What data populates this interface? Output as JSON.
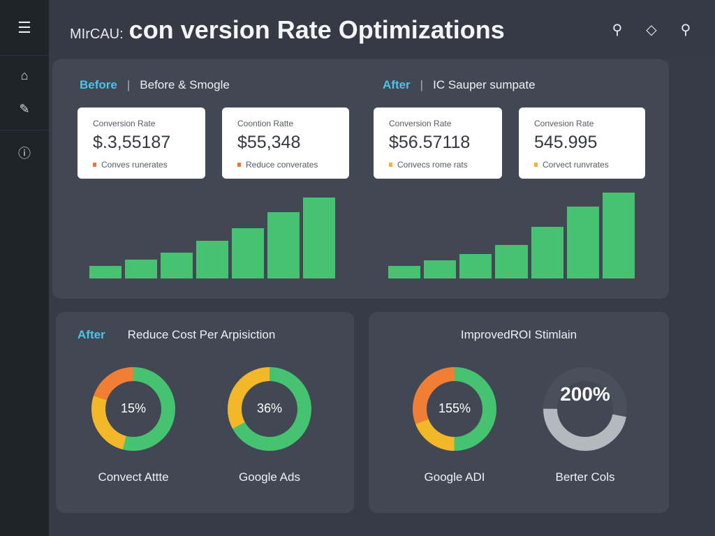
{
  "header": {
    "title_prefix": "MIrCAU:",
    "title": "con version Rate Optimizations"
  },
  "top_panel": {
    "before": {
      "tag": "Before",
      "subtitle": "Before & Smogle"
    },
    "after": {
      "tag": "After",
      "subtitle": "IC Sauper sumpate"
    },
    "cards": [
      {
        "label": "Conversion Rate",
        "value": "$.3,55187",
        "note": "Conves runerates",
        "dot": "#e8773a"
      },
      {
        "label": "Coontion Ratte",
        "value": "$55,348",
        "note": "Reduce converates",
        "dot": "#e8773a"
      },
      {
        "label": "Conversion Rate",
        "value": "$56.57118",
        "note": "Convecs rome rats",
        "dot": "#f2b829"
      },
      {
        "label": "Convesion Rate",
        "value": "545.995",
        "note": "Corvect runvrates",
        "dot": "#f2b829"
      }
    ]
  },
  "chart_data": [
    {
      "type": "bar",
      "title": "Before",
      "values": [
        18,
        27,
        37,
        54,
        72,
        95,
        116
      ]
    },
    {
      "type": "bar",
      "title": "After",
      "values": [
        18,
        26,
        35,
        48,
        74,
        103,
        123
      ]
    }
  ],
  "bottom_left": {
    "tag": "After",
    "title": "Reduce Cost Per Arpisiction",
    "donuts": [
      {
        "value": "15%",
        "label": "Convect Attte",
        "segments": [
          {
            "color": "#46c371",
            "fraction": 0.54
          },
          {
            "color": "#f2b829",
            "fraction": 0.26
          },
          {
            "color": "#f07f35",
            "fraction": 0.2
          }
        ]
      },
      {
        "value": "36%",
        "label": "Google Ads",
        "segments": [
          {
            "color": "#46c371",
            "fraction": 0.67
          },
          {
            "color": "#f2b829",
            "fraction": 0.33
          }
        ]
      }
    ]
  },
  "bottom_right": {
    "title": "ImprovedROI Stimlain",
    "donuts": [
      {
        "value": "155%",
        "label": "Google ADI",
        "segments": [
          {
            "color": "#46c371",
            "fraction": 0.5
          },
          {
            "color": "#f2b829",
            "fraction": 0.19
          },
          {
            "color": "#f07f35",
            "fraction": 0.31
          }
        ]
      },
      {
        "value": "200%",
        "label": "Berter Cols",
        "segments": [
          {
            "color": "#4a505b",
            "fraction": 0.28
          },
          {
            "color": "#b4b8bf",
            "fraction": 0.47
          },
          {
            "color": "#4a505b",
            "fraction": 0.25
          }
        ]
      }
    ]
  }
}
